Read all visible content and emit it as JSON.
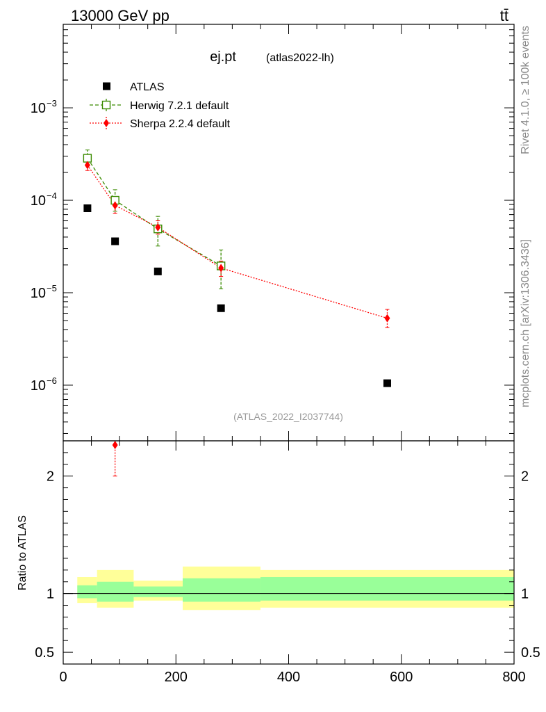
{
  "header": {
    "energy_label": "13000 GeV pp",
    "process_label": "tt̄"
  },
  "side_labels": {
    "rivet": "Rivet 4.1.0, ≥ 100k events",
    "mcplots": "mcplots.cern.ch [arXiv:1306.3436]"
  },
  "colors": {
    "data": "#000000",
    "herwig": "#3a8a00",
    "sherpa": "#ff0000",
    "band_outer": "#ffff99",
    "band_inner": "#99ff99",
    "watermark": "#999999"
  },
  "chart_data": [
    {
      "type": "scatter",
      "title": "ej.pt",
      "subtitle": "(atlas2022-lh)",
      "watermark": "(ATLAS_2022_I2037744)",
      "yscale": "log",
      "xlim": [
        0,
        800
      ],
      "ylim": [
        2.5e-07,
        0.008
      ],
      "yticks": [
        {
          "value": 1e-06,
          "base": "10",
          "exp": "−6"
        },
        {
          "value": 1e-05,
          "base": "10",
          "exp": "−5"
        },
        {
          "value": 0.0001,
          "base": "10",
          "exp": "−4"
        },
        {
          "value": 0.001,
          "base": "10",
          "exp": "−3"
        }
      ],
      "legend_position": "top-left",
      "series": [
        {
          "name": "ATLAS",
          "marker": "square-filled",
          "x": [
            43,
            92,
            168,
            280,
            575
          ],
          "y": [
            8.2e-05,
            3.6e-05,
            1.7e-05,
            6.8e-06,
            1.05e-06
          ]
        },
        {
          "name": "Herwig 7.2.1 default",
          "marker": "square-open",
          "line": "dashed",
          "x": [
            43,
            92,
            168,
            280
          ],
          "y": [
            0.000285,
            0.0001,
            4.9e-05,
            1.95e-05
          ],
          "yerr_low": [
            0.000245,
            7.6e-05,
            3.2e-05,
            1.1e-05
          ],
          "yerr_high": [
            0.00035,
            0.00013,
            6.7e-05,
            2.9e-05
          ]
        },
        {
          "name": "Sherpa 2.2.4 default",
          "marker": "diamond-filled",
          "line": "dotted",
          "x": [
            43,
            92,
            168,
            280,
            575
          ],
          "y": [
            0.00024,
            8.8e-05,
            5.1e-05,
            1.85e-05,
            5.3e-06
          ],
          "yerr_low": [
            0.00021,
            7.2e-05,
            4.3e-05,
            1.5e-05,
            4.2e-06
          ],
          "yerr_high": [
            0.000275,
            0.000105,
            6e-05,
            2.2e-05,
            6.6e-06
          ]
        }
      ]
    },
    {
      "type": "scatter",
      "ylabel": "Ratio to ATLAS",
      "xlim": [
        0,
        800
      ],
      "ylim": [
        0.4,
        2.3
      ],
      "xticks": [
        0,
        200,
        400,
        600,
        800
      ],
      "yticks": [
        0.5,
        1,
        2
      ],
      "reference_line": 1,
      "bands": [
        {
          "x0": 25,
          "x1": 60,
          "outer": [
            0.92,
            1.14
          ],
          "inner": [
            0.96,
            1.07
          ]
        },
        {
          "x0": 60,
          "x1": 125,
          "outer": [
            0.88,
            1.2
          ],
          "inner": [
            0.93,
            1.1
          ]
        },
        {
          "x0": 125,
          "x1": 212,
          "outer": [
            0.94,
            1.11
          ],
          "inner": [
            0.97,
            1.06
          ]
        },
        {
          "x0": 212,
          "x1": 350,
          "outer": [
            0.86,
            1.23
          ],
          "inner": [
            0.93,
            1.13
          ]
        },
        {
          "x0": 350,
          "x1": 800,
          "outer": [
            0.88,
            1.2
          ],
          "inner": [
            0.94,
            1.14
          ]
        }
      ],
      "series": [
        {
          "name": "Sherpa 2.2.4 default",
          "x": [
            92
          ],
          "y": [
            2.3
          ],
          "yerr_low": [
            2.0
          ],
          "yerr_high": [
            2.3
          ]
        }
      ]
    }
  ]
}
